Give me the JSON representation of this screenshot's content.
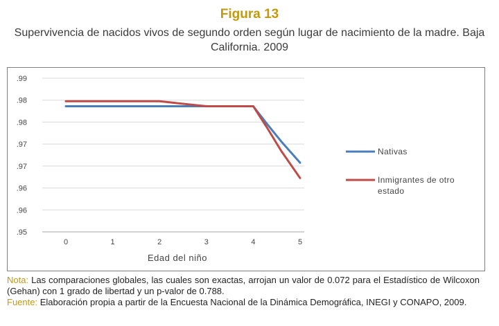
{
  "figure": {
    "label": "Figura 13",
    "title": "Supervivencia de nacidos vivos de segundo orden según lugar de nacimiento de la madre. Baja California. 2009"
  },
  "chart_data": {
    "type": "line",
    "x": [
      0,
      1,
      2,
      3,
      4,
      5
    ],
    "xticks": [
      "0",
      "1",
      "2",
      "3",
      "4",
      "5"
    ],
    "xlabel": "Edad del niño",
    "yticks": [
      ".99",
      ".98",
      ".98",
      ".97",
      ".97",
      ".96",
      ".96",
      ".95"
    ],
    "ylim": [
      0.95,
      0.99
    ],
    "grid": "horizontal",
    "legend_position": "right",
    "series": [
      {
        "name": "Nativas",
        "color": "#4a7ebb",
        "points": [
          [
            0,
            0.9827
          ],
          [
            2,
            0.9827
          ],
          [
            3,
            0.9827
          ],
          [
            4,
            0.9827
          ],
          [
            4.3,
            0.978
          ],
          [
            4.6,
            0.9735
          ],
          [
            5,
            0.968
          ]
        ]
      },
      {
        "name": "Inmigrantes de otro estado",
        "color": "#be4b48",
        "points": [
          [
            0,
            0.984
          ],
          [
            2,
            0.984
          ],
          [
            3,
            0.9827
          ],
          [
            4,
            0.9827
          ],
          [
            4.3,
            0.977
          ],
          [
            4.6,
            0.971
          ],
          [
            5,
            0.964
          ]
        ]
      }
    ]
  },
  "notes": {
    "nota_label": "Nota:",
    "nota_text": " Las comparaciones globales, las cuales son exactas, arrojan un valor de  0.072 para el Estadístico de Wilcoxon (Gehan) con 1 grado de libertad y un p-valor de  0.788.",
    "fuente_label": "Fuente:",
    "fuente_text": " Elaboración propia a partir de la Encuesta Nacional de la Dinámica Demográfica, INEGI y CONAPO, 2009."
  }
}
